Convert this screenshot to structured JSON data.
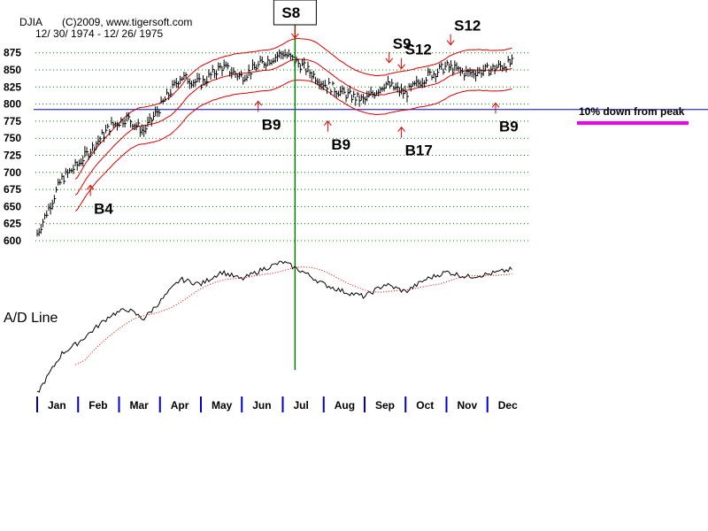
{
  "chart_data": {
    "type": "line",
    "title": "DJIA",
    "copyright": "(C)2009, www.tigersoft.com",
    "date_range": "12/ 30/ 1974 - 12/ 26/ 1975",
    "ylim": [
      600,
      890
    ],
    "y_ticks": [
      600,
      625,
      650,
      675,
      700,
      725,
      750,
      775,
      800,
      825,
      850,
      875
    ],
    "months": [
      "Jan",
      "Feb",
      "Mar",
      "Apr",
      "May",
      "Jun",
      "Jul",
      "Aug",
      "Sep",
      "Oct",
      "Nov",
      "Dec"
    ],
    "price_series": {
      "name": "DJIA",
      "x": [
        0,
        0.3,
        0.6,
        1,
        1.4,
        1.8,
        2.2,
        2.6,
        3,
        3.5,
        4,
        4.5,
        5,
        5.5,
        6,
        6.5,
        7,
        7.5,
        8,
        8.5,
        9,
        9.5,
        10,
        10.5,
        11,
        11.6
      ],
      "values": [
        610,
        650,
        690,
        712,
        740,
        768,
        780,
        760,
        795,
        840,
        830,
        855,
        840,
        860,
        875,
        855,
        830,
        815,
        805,
        830,
        815,
        840,
        855,
        845,
        850,
        860
      ]
    },
    "reference_line": {
      "value": 792,
      "label": "10% down from peak",
      "color": "#0000cc"
    },
    "vertical_marker": {
      "x": 6.3,
      "color": "#008000"
    },
    "ad_line": {
      "label": "A/D Line"
    },
    "signals": [
      {
        "label": "S8",
        "x": 6.3,
        "type": "sell",
        "boxed": true
      },
      {
        "label": "S9",
        "x": 8.6,
        "type": "sell"
      },
      {
        "label": "S12",
        "x": 8.9,
        "type": "sell"
      },
      {
        "label": "S12",
        "x": 10.1,
        "type": "sell"
      },
      {
        "label": "B4",
        "x": 1.3,
        "type": "buy"
      },
      {
        "label": "B9",
        "x": 5.4,
        "type": "buy"
      },
      {
        "label": "B9",
        "x": 7.1,
        "type": "buy"
      },
      {
        "label": "B17",
        "x": 8.9,
        "type": "buy"
      },
      {
        "label": "B9",
        "x": 11.2,
        "type": "buy"
      }
    ],
    "colors": {
      "grid": "#008000",
      "bands": "#dd0000",
      "bars": "#000000",
      "highlight": "#ee00ee"
    }
  }
}
